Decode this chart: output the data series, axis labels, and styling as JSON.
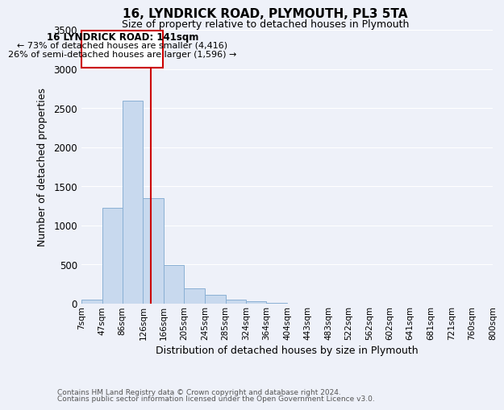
{
  "title": "16, LYNDRICK ROAD, PLYMOUTH, PL3 5TA",
  "subtitle": "Size of property relative to detached houses in Plymouth",
  "xlabel": "Distribution of detached houses by size in Plymouth",
  "ylabel": "Number of detached properties",
  "bar_color": "#c8d9ee",
  "bar_edge_color": "#8ab0d4",
  "bg_color": "#eef1f9",
  "grid_color": "#ffffff",
  "vline_x": 141,
  "vline_color": "#cc0000",
  "annotation_title": "16 LYNDRICK ROAD: 141sqm",
  "annotation_line1": "← 73% of detached houses are smaller (4,416)",
  "annotation_line2": "26% of semi-detached houses are larger (1,596) →",
  "annotation_box_color": "#cc0000",
  "ylim": [
    0,
    3500
  ],
  "bin_edges": [
    7,
    47,
    86,
    126,
    166,
    205,
    245,
    285,
    324,
    364,
    404,
    443,
    483,
    522,
    562,
    602,
    641,
    681,
    721,
    760,
    800
  ],
  "bin_labels": [
    "7sqm",
    "47sqm",
    "86sqm",
    "126sqm",
    "166sqm",
    "205sqm",
    "245sqm",
    "285sqm",
    "324sqm",
    "364sqm",
    "404sqm",
    "443sqm",
    "483sqm",
    "522sqm",
    "562sqm",
    "602sqm",
    "641sqm",
    "681sqm",
    "721sqm",
    "760sqm",
    "800sqm"
  ],
  "bar_heights": [
    50,
    1230,
    2590,
    1350,
    490,
    200,
    110,
    50,
    30,
    10,
    5,
    0,
    0,
    0,
    0,
    0,
    0,
    0,
    0,
    0
  ],
  "footnote1": "Contains HM Land Registry data © Crown copyright and database right 2024.",
  "footnote2": "Contains public sector information licensed under the Open Government Licence v3.0."
}
